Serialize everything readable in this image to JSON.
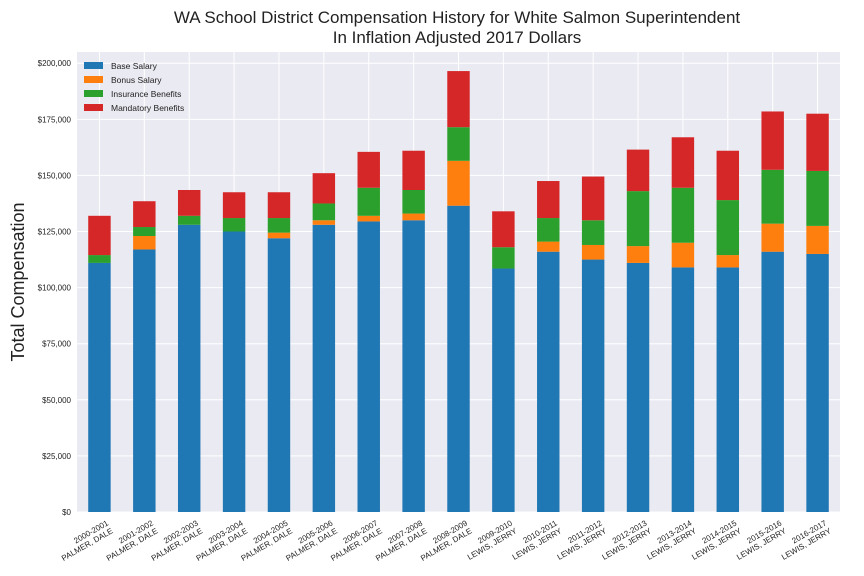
{
  "chart_data": {
    "type": "bar",
    "stacked": true,
    "title": "WA School District Compensation History for White Salmon Superintendent",
    "subtitle": "In Inflation Adjusted 2017 Dollars",
    "xlabel": "",
    "ylabel": "Total Compensation",
    "ylim": [
      0,
      205000
    ],
    "yticks": [
      0,
      25000,
      50000,
      75000,
      100000,
      125000,
      150000,
      175000,
      200000
    ],
    "ytick_labels": [
      "$0",
      "$25,000",
      "$50,000",
      "$75,000",
      "$100,000",
      "$125,000",
      "$150,000",
      "$175,000",
      "$200,000"
    ],
    "grid": true,
    "legend_position": "top-left",
    "categories": [
      [
        "2000-2001",
        "PALMER, DALE"
      ],
      [
        "2001-2002",
        "PALMER, DALE"
      ],
      [
        "2002-2003",
        "PALMER, DALE"
      ],
      [
        "2003-2004",
        "PALMER, DALE"
      ],
      [
        "2004-2005",
        "PALMER, DALE"
      ],
      [
        "2005-2006",
        "PALMER, DALE"
      ],
      [
        "2006-2007",
        "PALMER, DALE"
      ],
      [
        "2007-2008",
        "PALMER, DALE"
      ],
      [
        "2008-2009",
        "PALMER, DALE"
      ],
      [
        "2009-2010",
        "LEWIS, JERRY"
      ],
      [
        "2010-2011",
        "LEWIS, JERRY"
      ],
      [
        "2011-2012",
        "LEWIS, JERRY"
      ],
      [
        "2012-2013",
        "LEWIS, JERRY"
      ],
      [
        "2013-2014",
        "LEWIS, JERRY"
      ],
      [
        "2014-2015",
        "LEWIS, JERRY"
      ],
      [
        "2015-2016",
        "LEWIS, JERRY"
      ],
      [
        "2016-2017",
        "LEWIS, JERRY"
      ]
    ],
    "series": [
      {
        "name": "Base Salary",
        "color": "#1f77b4",
        "values": [
          111000,
          117000,
          128000,
          125000,
          122000,
          128000,
          129500,
          130000,
          136500,
          108500,
          116000,
          112500,
          111000,
          109000,
          109000,
          116000,
          115000
        ]
      },
      {
        "name": "Bonus Salary",
        "color": "#ff7f0e",
        "values": [
          0,
          6000,
          0,
          0,
          2500,
          2000,
          2500,
          3000,
          20000,
          0,
          4500,
          6500,
          7500,
          11000,
          5500,
          12500,
          12500
        ]
      },
      {
        "name": "Insurance Benefits",
        "color": "#2ca02c",
        "values": [
          3500,
          4000,
          4000,
          6000,
          6500,
          7500,
          12500,
          10500,
          15000,
          9500,
          10500,
          11000,
          24500,
          24500,
          24500,
          24000,
          24500
        ]
      },
      {
        "name": "Mandatory Benefits",
        "color": "#d62728",
        "values": [
          17500,
          11500,
          11500,
          11500,
          11500,
          13500,
          16000,
          17500,
          25000,
          16000,
          16500,
          19500,
          18500,
          22500,
          22000,
          26000,
          25500
        ]
      }
    ]
  }
}
